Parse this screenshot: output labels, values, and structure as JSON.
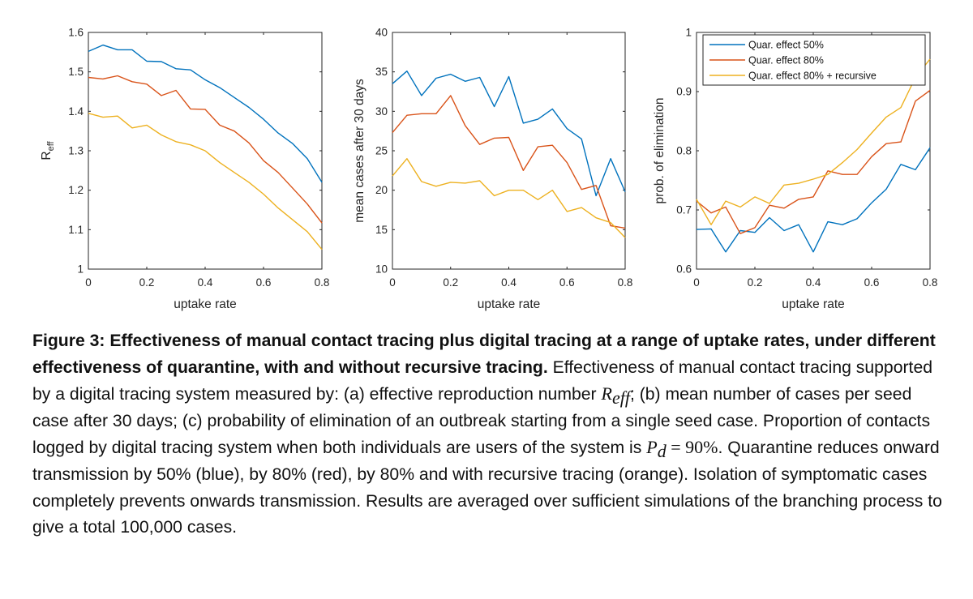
{
  "colors": {
    "blue": "#0072BD",
    "red": "#D95319",
    "orange": "#EDB120",
    "axis": "#262626"
  },
  "chart_data": [
    {
      "type": "line",
      "panel": "a",
      "xlabel": "uptake rate",
      "ylabel": "R",
      "ylabel_sub": "eff",
      "xlim": [
        0,
        0.8
      ],
      "ylim": [
        1,
        1.6
      ],
      "xticks": [
        0,
        0.2,
        0.4,
        0.6,
        0.8
      ],
      "xtick_labels": [
        "0",
        "0.2",
        "0.4",
        "0.6",
        "0.8"
      ],
      "yticks": [
        1,
        1.1,
        1.2,
        1.3,
        1.4,
        1.5,
        1.6
      ],
      "ytick_labels": [
        "1",
        "1.1",
        "1.2",
        "1.3",
        "1.4",
        "1.5",
        "1.6"
      ],
      "x": [
        0,
        0.05,
        0.1,
        0.15,
        0.2,
        0.25,
        0.3,
        0.35,
        0.4,
        0.45,
        0.5,
        0.55,
        0.6,
        0.65,
        0.7,
        0.75,
        0.8
      ],
      "series": [
        {
          "color": "blue",
          "values": [
            1.552,
            1.568,
            1.556,
            1.556,
            1.527,
            1.526,
            1.508,
            1.505,
            1.48,
            1.46,
            1.435,
            1.41,
            1.38,
            1.345,
            1.318,
            1.28,
            1.22
          ]
        },
        {
          "color": "red",
          "values": [
            1.486,
            1.482,
            1.49,
            1.475,
            1.469,
            1.44,
            1.453,
            1.406,
            1.405,
            1.365,
            1.35,
            1.32,
            1.275,
            1.245,
            1.205,
            1.165,
            1.117
          ]
        },
        {
          "color": "orange",
          "values": [
            1.395,
            1.385,
            1.388,
            1.358,
            1.365,
            1.34,
            1.323,
            1.315,
            1.3,
            1.27,
            1.245,
            1.22,
            1.19,
            1.155,
            1.125,
            1.095,
            1.05
          ]
        }
      ]
    },
    {
      "type": "line",
      "panel": "b",
      "xlabel": "uptake rate",
      "ylabel": "mean cases after 30 days",
      "xlim": [
        0,
        0.8
      ],
      "ylim": [
        10,
        40
      ],
      "xticks": [
        0,
        0.2,
        0.4,
        0.6,
        0.8
      ],
      "xtick_labels": [
        "0",
        "0.2",
        "0.4",
        "0.6",
        "0.8"
      ],
      "yticks": [
        10,
        15,
        20,
        25,
        30,
        35,
        40
      ],
      "ytick_labels": [
        "10",
        "15",
        "20",
        "25",
        "30",
        "35",
        "40"
      ],
      "x": [
        0,
        0.05,
        0.1,
        0.15,
        0.2,
        0.25,
        0.3,
        0.35,
        0.4,
        0.45,
        0.5,
        0.55,
        0.6,
        0.65,
        0.7,
        0.75,
        0.8
      ],
      "series": [
        {
          "color": "blue",
          "values": [
            33.5,
            35.1,
            32.0,
            34.2,
            34.7,
            33.8,
            34.3,
            30.6,
            34.4,
            28.5,
            29.0,
            30.3,
            27.8,
            26.5,
            19.3,
            24.0,
            19.8
          ]
        },
        {
          "color": "red",
          "values": [
            27.3,
            29.5,
            29.7,
            29.7,
            32.0,
            28.2,
            25.8,
            26.6,
            26.7,
            22.5,
            25.5,
            25.7,
            23.5,
            20.1,
            20.6,
            15.5,
            15.2
          ]
        },
        {
          "color": "orange",
          "values": [
            21.8,
            24.0,
            21.1,
            20.5,
            21.0,
            20.9,
            21.2,
            19.3,
            20.0,
            20.0,
            18.8,
            20.0,
            17.3,
            17.8,
            16.5,
            15.9,
            14.0
          ]
        }
      ]
    },
    {
      "type": "line",
      "panel": "c",
      "xlabel": "uptake rate",
      "ylabel": "prob. of elimination",
      "xlim": [
        0,
        0.8
      ],
      "ylim": [
        0.6,
        1
      ],
      "xticks": [
        0,
        0.2,
        0.4,
        0.6,
        0.8
      ],
      "xtick_labels": [
        "0",
        "0.2",
        "0.4",
        "0.6",
        "0.8"
      ],
      "yticks": [
        0.6,
        0.7,
        0.8,
        0.9,
        1
      ],
      "ytick_labels": [
        "0.6",
        "0.7",
        "0.8",
        "0.9",
        "1"
      ],
      "legend_position": "top-right",
      "x": [
        0,
        0.05,
        0.1,
        0.15,
        0.2,
        0.25,
        0.3,
        0.35,
        0.4,
        0.45,
        0.5,
        0.55,
        0.6,
        0.65,
        0.7,
        0.75,
        0.8
      ],
      "series": [
        {
          "name": "Quar. effect 50%",
          "color": "blue",
          "values": [
            0.667,
            0.668,
            0.629,
            0.665,
            0.662,
            0.687,
            0.665,
            0.675,
            0.629,
            0.68,
            0.675,
            0.685,
            0.712,
            0.735,
            0.777,
            0.768,
            0.805
          ]
        },
        {
          "name": "Quar. effect 80%",
          "color": "red",
          "values": [
            0.715,
            0.695,
            0.705,
            0.66,
            0.67,
            0.708,
            0.703,
            0.718,
            0.722,
            0.766,
            0.76,
            0.76,
            0.79,
            0.812,
            0.815,
            0.884,
            0.902
          ]
        },
        {
          "name": "Quar. effect 80% + recursive",
          "color": "orange",
          "values": [
            0.718,
            0.675,
            0.715,
            0.705,
            0.722,
            0.711,
            0.742,
            0.745,
            0.752,
            0.76,
            0.78,
            0.802,
            0.83,
            0.857,
            0.873,
            0.924,
            0.955
          ]
        }
      ]
    }
  ],
  "caption": {
    "title": "Figure 3: Effectiveness of manual contact tracing plus digital tracing at a range of uptake rates, under different effectiveness of quarantine, with and without recursive tracing.",
    "text1": " Effectiveness of manual contact tracing supported by a digital tracing system measured by: (a) effective reproduction number ",
    "reff_R": "R",
    "reff_sub": "eff",
    "text2": "; (b) mean number of cases per seed case after 30 days; (c) probability of elimination of an outbreak starting from a single seed case. Proportion of contacts logged by digital tracing system when both individuals are users of the system is ",
    "pd_P": "P",
    "pd_sub": "d",
    "pd_eq": " = 90%",
    "text3": ". Quarantine reduces onward transmission by 50% (blue), by 80% (red), by 80% and with recursive tracing (orange). Isolation of symptomatic cases completely prevents onwards transmission. Results are averaged over sufficient simulations of the branching process to give a total 100,000 cases."
  }
}
